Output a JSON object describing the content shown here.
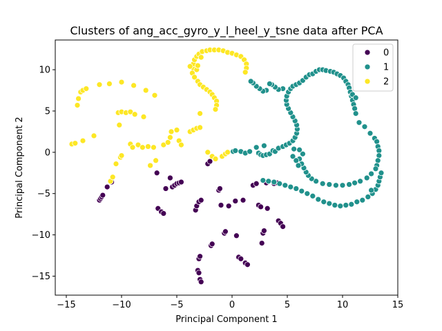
{
  "chart_data": {
    "type": "scatter",
    "title": "Clusters of ang_acc_gyro_y_l_heel_y_tsne data after PCA",
    "xlabel": "Principal Component 1",
    "ylabel": "Principal Component 2",
    "xlim": [
      -16,
      15
    ],
    "ylim": [
      -17.3,
      13.6
    ],
    "xticks": [
      -15,
      -10,
      -5,
      0,
      5,
      10,
      15
    ],
    "yticks": [
      -15,
      -10,
      -5,
      0,
      5,
      10
    ],
    "grid": false,
    "legend_position": "top-right",
    "legend": [
      {
        "label": "0",
        "color": "#440154"
      },
      {
        "label": "1",
        "color": "#21918c"
      },
      {
        "label": "2",
        "color": "#fde725"
      }
    ],
    "series": [
      {
        "name": "0",
        "color": "#440154",
        "points": [
          [
            -12.0,
            -5.8
          ],
          [
            -11.9,
            -5.6
          ],
          [
            -11.8,
            -5.4
          ],
          [
            -11.7,
            -5.2
          ],
          [
            -11.3,
            -4.2
          ],
          [
            -10.9,
            -3.6
          ],
          [
            -6.8,
            -2.5
          ],
          [
            -6.7,
            -6.8
          ],
          [
            -6.4,
            -7.2
          ],
          [
            -6.2,
            -7.4
          ],
          [
            -6.0,
            -4.4
          ],
          [
            -5.6,
            -3.1
          ],
          [
            -5.4,
            -4.2
          ],
          [
            -5.2,
            -4.0
          ],
          [
            -5.0,
            -3.8
          ],
          [
            -4.8,
            -3.7
          ],
          [
            -4.6,
            -3.6
          ],
          [
            -3.3,
            -7.0
          ],
          [
            -3.2,
            -6.5
          ],
          [
            -3.0,
            -6.0
          ],
          [
            -2.8,
            -5.8
          ],
          [
            -3.0,
            -12.9
          ],
          [
            -2.9,
            -12.6
          ],
          [
            -3.1,
            -14.3
          ],
          [
            -3.0,
            -14.6
          ],
          [
            -2.9,
            -15.4
          ],
          [
            -2.8,
            -15.7
          ],
          [
            -2.2,
            -1.4
          ],
          [
            -2.0,
            -1.1
          ],
          [
            -1.9,
            -11.3
          ],
          [
            -1.8,
            -11.1
          ],
          [
            -1.2,
            -4.6
          ],
          [
            -1.1,
            -4.4
          ],
          [
            -1.0,
            -6.4
          ],
          [
            -0.7,
            -9.8
          ],
          [
            -0.6,
            -9.6
          ],
          [
            -0.3,
            -6.5
          ],
          [
            0.3,
            -5.9
          ],
          [
            0.4,
            -10.1
          ],
          [
            0.6,
            -12.7
          ],
          [
            0.8,
            -12.9
          ],
          [
            1.0,
            -5.8
          ],
          [
            1.2,
            -13.4
          ],
          [
            1.4,
            -13.6
          ],
          [
            1.9,
            -4.0
          ],
          [
            2.2,
            -3.8
          ],
          [
            2.4,
            -6.4
          ],
          [
            2.6,
            -6.6
          ],
          [
            2.7,
            -11.0
          ],
          [
            2.8,
            -9.8
          ],
          [
            2.9,
            -9.5
          ],
          [
            3.1,
            -3.7
          ],
          [
            3.2,
            -6.8
          ],
          [
            3.8,
            -3.8
          ],
          [
            4.1,
            -3.7
          ],
          [
            4.2,
            -8.3
          ],
          [
            4.4,
            -8.6
          ],
          [
            4.6,
            -9.0
          ]
        ]
      },
      {
        "name": "1",
        "color": "#21918c",
        "points": [
          [
            0.1,
            0.1
          ],
          [
            0.3,
            0.2
          ],
          [
            0.8,
            0.1
          ],
          [
            1.2,
            -0.1
          ],
          [
            1.6,
            0.1
          ],
          [
            2.2,
            0.6
          ],
          [
            2.4,
            -0.1
          ],
          [
            2.6,
            -0.3
          ],
          [
            2.8,
            -0.4
          ],
          [
            2.9,
            0.8
          ],
          [
            3.1,
            -0.3
          ],
          [
            3.4,
            -0.2
          ],
          [
            3.7,
            0.2
          ],
          [
            3.9,
            0.1
          ],
          [
            4.2,
            0.5
          ],
          [
            4.6,
            0.7
          ],
          [
            4.9,
            0.9
          ],
          [
            5.2,
            1.1
          ],
          [
            5.5,
            1.4
          ],
          [
            5.7,
            1.8
          ],
          [
            5.85,
            2.3
          ],
          [
            5.9,
            2.8
          ],
          [
            5.85,
            3.3
          ],
          [
            5.7,
            3.8
          ],
          [
            5.5,
            4.3
          ],
          [
            5.3,
            4.8
          ],
          [
            5.1,
            5.3
          ],
          [
            4.95,
            5.8
          ],
          [
            4.9,
            6.3
          ],
          [
            4.95,
            6.8
          ],
          [
            5.1,
            7.3
          ],
          [
            5.3,
            7.7
          ],
          [
            5.5,
            8.0
          ],
          [
            4.6,
            7.7
          ],
          [
            4.2,
            7.6
          ],
          [
            3.9,
            7.9
          ],
          [
            3.6,
            8.2
          ],
          [
            3.4,
            8.3
          ],
          [
            3.1,
            7.5
          ],
          [
            2.8,
            7.4
          ],
          [
            2.5,
            7.7
          ],
          [
            2.2,
            8.0
          ],
          [
            1.9,
            8.4
          ],
          [
            1.7,
            8.6
          ],
          [
            5.8,
            8.2
          ],
          [
            6.1,
            8.4
          ],
          [
            6.4,
            8.7
          ],
          [
            6.7,
            9.1
          ],
          [
            7.0,
            9.4
          ],
          [
            7.3,
            9.5
          ],
          [
            7.6,
            9.8
          ],
          [
            7.9,
            10.0
          ],
          [
            8.2,
            10.0
          ],
          [
            8.5,
            9.9
          ],
          [
            8.9,
            9.8
          ],
          [
            9.2,
            9.7
          ],
          [
            9.5,
            9.5
          ],
          [
            9.8,
            9.3
          ],
          [
            10.1,
            9.0
          ],
          [
            10.3,
            8.6
          ],
          [
            10.5,
            8.2
          ],
          [
            10.6,
            7.8
          ],
          [
            10.7,
            7.3
          ],
          [
            10.8,
            6.8
          ],
          [
            10.9,
            6.3
          ],
          [
            11.0,
            5.8
          ],
          [
            11.1,
            5.3
          ],
          [
            11.2,
            4.7
          ],
          [
            11.5,
            3.6
          ],
          [
            12.0,
            3.1
          ],
          [
            12.5,
            2.3
          ],
          [
            12.9,
            1.7
          ],
          [
            13.1,
            1.3
          ],
          [
            13.2,
            0.7
          ],
          [
            13.3,
            0.2
          ],
          [
            13.3,
            -0.4
          ],
          [
            13.2,
            -1.0
          ],
          [
            13.1,
            -1.6
          ],
          [
            13.0,
            -2.0
          ],
          [
            12.6,
            -2.6
          ],
          [
            12.2,
            -3.1
          ],
          [
            11.6,
            -3.5
          ],
          [
            11.1,
            -3.7
          ],
          [
            10.6,
            -3.9
          ],
          [
            10.0,
            -4.0
          ],
          [
            9.4,
            -4.0
          ],
          [
            8.8,
            -3.9
          ],
          [
            8.2,
            -3.8
          ],
          [
            7.6,
            -3.5
          ],
          [
            7.2,
            -3.2
          ],
          [
            6.9,
            -2.8
          ],
          [
            6.7,
            -2.4
          ],
          [
            6.5,
            -1.9
          ],
          [
            6.3,
            -1.4
          ],
          [
            6.1,
            -0.8
          ],
          [
            6.4,
            -0.2
          ],
          [
            6.1,
            0.3
          ],
          [
            5.6,
            0.4
          ],
          [
            5.5,
            -0.5
          ],
          [
            5.8,
            -1.0
          ],
          [
            6.0,
            -1.6
          ],
          [
            2.8,
            -3.4
          ],
          [
            3.3,
            -3.5
          ],
          [
            3.8,
            -3.6
          ],
          [
            4.3,
            -3.8
          ],
          [
            4.8,
            -4.0
          ],
          [
            5.3,
            -4.2
          ],
          [
            5.8,
            -4.4
          ],
          [
            6.3,
            -4.7
          ],
          [
            6.8,
            -5.0
          ],
          [
            7.3,
            -5.3
          ],
          [
            7.8,
            -5.7
          ],
          [
            8.3,
            -6.0
          ],
          [
            8.8,
            -6.2
          ],
          [
            9.3,
            -6.4
          ],
          [
            9.8,
            -6.5
          ],
          [
            10.3,
            -6.4
          ],
          [
            10.8,
            -6.3
          ],
          [
            11.3,
            -6.0
          ],
          [
            11.8,
            -5.8
          ],
          [
            12.3,
            -5.4
          ],
          [
            12.7,
            -5.0
          ],
          [
            13.0,
            -4.5
          ],
          [
            13.2,
            -4.0
          ],
          [
            13.3,
            -3.5
          ],
          [
            13.4,
            -3.0
          ],
          [
            13.5,
            -2.5
          ],
          [
            12.6,
            -4.6
          ],
          [
            10.9,
            7.0
          ],
          [
            11.2,
            6.6
          ]
        ]
      },
      {
        "name": "2",
        "color": "#fde725",
        "points": [
          [
            -14.5,
            1.0
          ],
          [
            -14.2,
            1.1
          ],
          [
            -14.0,
            5.7
          ],
          [
            -13.9,
            6.5
          ],
          [
            -13.7,
            7.3
          ],
          [
            -13.5,
            7.5
          ],
          [
            -13.5,
            1.4
          ],
          [
            -13.2,
            7.7
          ],
          [
            -12.5,
            2.0
          ],
          [
            -12.0,
            8.2
          ],
          [
            -11.1,
            8.3
          ],
          [
            -11.0,
            -3.5
          ],
          [
            -10.8,
            -3.0
          ],
          [
            -10.5,
            -1.4
          ],
          [
            -10.3,
            4.8
          ],
          [
            -10.1,
            -0.6
          ],
          [
            -10.0,
            4.9
          ],
          [
            -10.0,
            8.5
          ],
          [
            -10.0,
            -0.4
          ],
          [
            -10.2,
            3.3
          ],
          [
            -9.6,
            4.8
          ],
          [
            -9.2,
            4.9
          ],
          [
            -9.2,
            1.0
          ],
          [
            -9.0,
            0.6
          ],
          [
            -8.9,
            8.1
          ],
          [
            -8.8,
            4.6
          ],
          [
            -8.5,
            0.9
          ],
          [
            -8.1,
            0.6
          ],
          [
            -8.0,
            4.3
          ],
          [
            -7.8,
            7.5
          ],
          [
            -7.6,
            0.7
          ],
          [
            -7.4,
            -1.6
          ],
          [
            -7.1,
            0.6
          ],
          [
            -7.0,
            6.9
          ],
          [
            -6.9,
            -1.0
          ],
          [
            -6.2,
            0.9
          ],
          [
            -5.8,
            1.2
          ],
          [
            -5.6,
            1.8
          ],
          [
            -5.5,
            2.5
          ],
          [
            -5.0,
            2.7
          ],
          [
            -4.8,
            1.4
          ],
          [
            -4.6,
            0.9
          ],
          [
            -3.8,
            2.5
          ],
          [
            -3.5,
            2.7
          ],
          [
            -3.2,
            2.9
          ],
          [
            -2.9,
            4.7
          ],
          [
            -2.9,
            3.0
          ],
          [
            -2.2,
            0.0
          ],
          [
            -1.8,
            -0.5
          ],
          [
            -1.5,
            -0.8
          ],
          [
            -0.9,
            -0.5
          ],
          [
            -0.6,
            -0.2
          ],
          [
            -0.4,
            0.0
          ],
          [
            -3.5,
            10.2
          ],
          [
            -3.5,
            10.7
          ],
          [
            -3.4,
            11.2
          ],
          [
            -3.2,
            11.6
          ],
          [
            -3.0,
            11.9
          ],
          [
            -2.7,
            12.2
          ],
          [
            -2.3,
            12.3
          ],
          [
            -2.0,
            12.4
          ],
          [
            -1.6,
            12.4
          ],
          [
            -1.2,
            12.4
          ],
          [
            -0.8,
            12.3
          ],
          [
            -0.4,
            12.1
          ],
          [
            0.0,
            12.0
          ],
          [
            0.4,
            11.8
          ],
          [
            0.8,
            11.6
          ],
          [
            1.1,
            11.2
          ],
          [
            1.3,
            10.7
          ],
          [
            1.3,
            10.2
          ],
          [
            1.2,
            9.7
          ],
          [
            -3.6,
            9.6
          ],
          [
            -3.4,
            9.1
          ],
          [
            -3.1,
            8.6
          ],
          [
            -2.9,
            8.2
          ],
          [
            -2.6,
            7.9
          ],
          [
            -2.3,
            7.6
          ],
          [
            -2.0,
            7.3
          ],
          [
            -1.8,
            7.0
          ],
          [
            -1.6,
            6.6
          ],
          [
            -1.4,
            6.2
          ],
          [
            -1.4,
            5.7
          ],
          [
            -1.5,
            5.2
          ],
          [
            -3.2,
            10.0
          ],
          [
            -3.1,
            10.5
          ],
          [
            -2.8,
            11.5
          ],
          [
            -3.8,
            10.4
          ]
        ]
      }
    ]
  }
}
